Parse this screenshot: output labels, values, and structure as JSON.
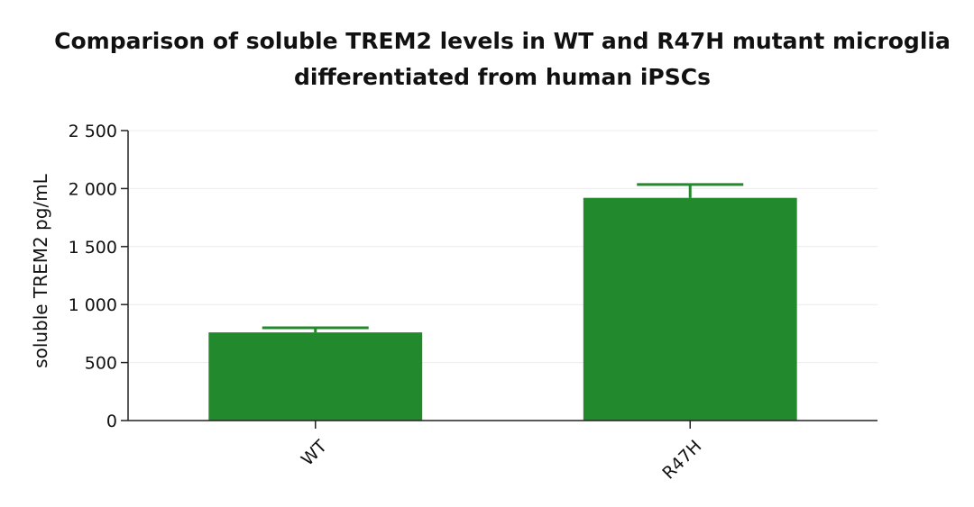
{
  "chart_data": {
    "type": "bar",
    "title_lines": [
      "Comparison of soluble TREM2 levels in WT and R47H mutant microglia",
      "differentiated from human iPSCs"
    ],
    "categories": [
      "WT",
      "R47H"
    ],
    "values": [
      760,
      1920
    ],
    "error_upper": [
      800,
      2035
    ],
    "ylabel": "soluble TREM2 pg/mL",
    "xlabel": "",
    "ylim": [
      0,
      2500
    ],
    "yticks": [
      0,
      500,
      1000,
      1500,
      2000,
      2500
    ],
    "ytick_labels": [
      "0",
      "500",
      "1 000",
      "1 500",
      "2 000",
      "2 500"
    ],
    "grid": true,
    "legend": "none",
    "bar_color": "#22892d",
    "axis_color": "#222222",
    "grid_color": "#ececec"
  }
}
